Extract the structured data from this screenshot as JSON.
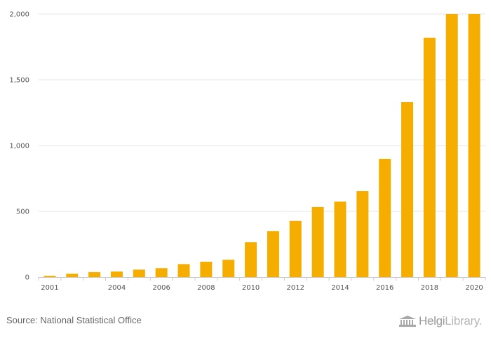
{
  "chart_data": {
    "type": "bar",
    "title": "",
    "xlabel": "",
    "ylabel": "",
    "categories": [
      "2001",
      "2002",
      "2003",
      "2004",
      "2005",
      "2006",
      "2007",
      "2008",
      "2009",
      "2010",
      "2011",
      "2012",
      "2013",
      "2014",
      "2015",
      "2016",
      "2017",
      "2018",
      "2019",
      "2020"
    ],
    "values": [
      10,
      26,
      38,
      43,
      57,
      68,
      99,
      117,
      132,
      265,
      350,
      427,
      533,
      574,
      654,
      899,
      1330,
      1820,
      2000,
      2000
    ],
    "x_tick_labels": [
      "2001",
      "2004",
      "2006",
      "2008",
      "2010",
      "2012",
      "2014",
      "2016",
      "2018",
      "2020"
    ],
    "y_ticks": [
      0,
      500,
      1000,
      1500,
      2000
    ],
    "y_tick_labels": [
      "0",
      "500",
      "1,000",
      "1,500",
      "2,000"
    ],
    "ylim": [
      0,
      2000
    ],
    "grid": true,
    "colors": {
      "bar": "#f5ae00",
      "grid": "#e6e6e6",
      "axis": "#cccccc"
    }
  },
  "footer": {
    "source": "Source: National Statistical Office",
    "brand_name": "Helgi",
    "brand_suffix": "Library."
  }
}
